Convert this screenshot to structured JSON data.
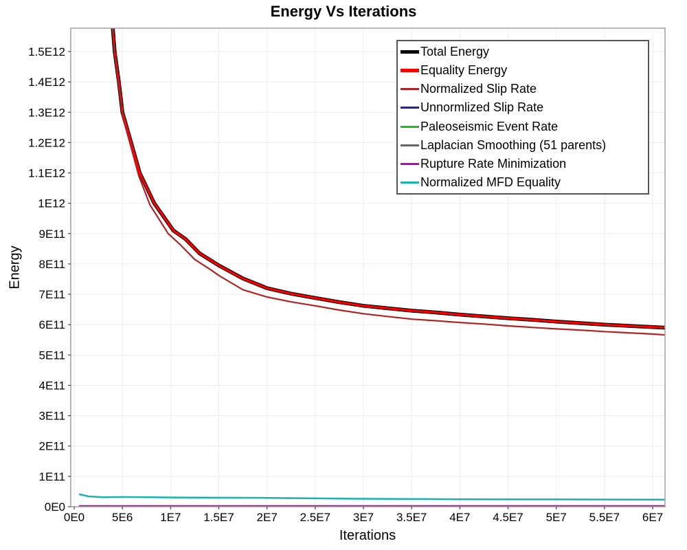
{
  "chart_data": {
    "type": "line",
    "title": "Energy Vs Iterations",
    "xlabel": "Iterations",
    "ylabel": "Energy",
    "grid": true,
    "legend_position": "top-right",
    "xlim": [
      -356000,
      61280000
    ],
    "ylim": [
      0,
      1577000000000.0
    ],
    "x_ticks": {
      "values": [
        0,
        5000000.0,
        10000000.0,
        15000000.0,
        20000000.0,
        25000000.0,
        30000000.0,
        35000000.0,
        40000000.0,
        45000000.0,
        50000000.0,
        55000000.0,
        60000000.0
      ],
      "labels": [
        "0E0",
        "5E6",
        "1E7",
        "1.5E7",
        "2E7",
        "2.5E7",
        "3E7",
        "3.5E7",
        "4E7",
        "4.5E7",
        "5E7",
        "5.5E7",
        "6E7"
      ]
    },
    "y_ticks": {
      "values": [
        0,
        100000000000.0,
        200000000000.0,
        300000000000.0,
        400000000000.0,
        500000000000.0,
        600000000000.0,
        700000000000.0,
        800000000000.0,
        900000000000.0,
        1000000000000.0,
        1100000000000.0,
        1200000000000.0,
        1300000000000.0,
        1400000000000.0,
        1500000000000.0
      ],
      "labels": [
        "0E0",
        "1E11",
        "2E11",
        "3E11",
        "4E11",
        "5E11",
        "6E11",
        "7E11",
        "8E11",
        "9E11",
        "1E12",
        "1.1E12",
        "1.2E12",
        "1.3E12",
        "1.4E12",
        "1.5E12"
      ]
    },
    "colors": {
      "grid": "#ececec",
      "plot_border": "#9e9e9e",
      "tick": "#444444",
      "text": "#000000"
    },
    "series": [
      {
        "name": "Total Energy",
        "color": "#000000",
        "width": 5.5,
        "points": [
          [
            3900000,
            1620000000000.0
          ],
          [
            4200000,
            1500000000000.0
          ],
          [
            4630000,
            1400000000000.0
          ],
          [
            5000000,
            1300000000000.0
          ],
          [
            5900000,
            1200000000000.0
          ],
          [
            6800000,
            1100000000000.0
          ],
          [
            8300000,
            1000000000000.0
          ],
          [
            10300000,
            910000000000.0
          ],
          [
            11550000,
            882000000000.0
          ],
          [
            13000000,
            835000000000.0
          ],
          [
            15000000,
            795000000000.0
          ],
          [
            17500000,
            752000000000.0
          ],
          [
            20000000,
            720000000000.0
          ],
          [
            22500000,
            702000000000.0
          ],
          [
            25000000,
            688000000000.0
          ],
          [
            27500000,
            674000000000.0
          ],
          [
            30000000,
            662000000000.0
          ],
          [
            32500000,
            654000000000.0
          ],
          [
            35000000,
            646000000000.0
          ],
          [
            37500000,
            640000000000.0
          ],
          [
            40000000,
            633000000000.0
          ],
          [
            42500000,
            627000000000.0
          ],
          [
            45000000,
            621000000000.0
          ],
          [
            47500000,
            616000000000.0
          ],
          [
            50000000,
            610000000000.0
          ],
          [
            52500000,
            605000000000.0
          ],
          [
            55000000,
            600000000000.0
          ],
          [
            57500000,
            596000000000.0
          ],
          [
            60000000,
            592000000000.0
          ],
          [
            61280000,
            590000000000.0
          ]
        ]
      },
      {
        "name": "Equality Energy",
        "color": "#ff0000",
        "width": 3.2,
        "points": [
          [
            3900000,
            1620000000000.0
          ],
          [
            4200000,
            1500000000000.0
          ],
          [
            4630000,
            1400000000000.0
          ],
          [
            5000000,
            1300000000000.0
          ],
          [
            5900000,
            1200000000000.0
          ],
          [
            6800000,
            1100000000000.0
          ],
          [
            8300000,
            1000000000000.0
          ],
          [
            10300000,
            910000000000.0
          ],
          [
            11550000,
            882000000000.0
          ],
          [
            13000000,
            835000000000.0
          ],
          [
            15000000,
            795000000000.0
          ],
          [
            17500000,
            752000000000.0
          ],
          [
            20000000,
            720000000000.0
          ],
          [
            22500000,
            702000000000.0
          ],
          [
            25000000,
            688000000000.0
          ],
          [
            27500000,
            674000000000.0
          ],
          [
            30000000,
            662000000000.0
          ],
          [
            32500000,
            654000000000.0
          ],
          [
            35000000,
            646000000000.0
          ],
          [
            37500000,
            640000000000.0
          ],
          [
            40000000,
            633000000000.0
          ],
          [
            42500000,
            627000000000.0
          ],
          [
            45000000,
            621000000000.0
          ],
          [
            47500000,
            616000000000.0
          ],
          [
            50000000,
            610000000000.0
          ],
          [
            52500000,
            605000000000.0
          ],
          [
            55000000,
            600000000000.0
          ],
          [
            57500000,
            596000000000.0
          ],
          [
            60000000,
            592000000000.0
          ],
          [
            61280000,
            590000000000.0
          ]
        ]
      },
      {
        "name": "Normalized Slip Rate",
        "color": "#b22222",
        "width": 2.2,
        "points": [
          [
            3900000,
            1610000000000.0
          ],
          [
            4200000,
            1490000000000.0
          ],
          [
            4600000,
            1390000000000.0
          ],
          [
            5000000,
            1290000000000.0
          ],
          [
            5850000,
            1190000000000.0
          ],
          [
            6700000,
            1090000000000.0
          ],
          [
            7850000,
            995000000000.0
          ],
          [
            9750000,
            900000000000.0
          ],
          [
            11050000,
            862000000000.0
          ],
          [
            12500000,
            815000000000.0
          ],
          [
            14200000,
            780000000000.0
          ],
          [
            15000000,
            762000000000.0
          ],
          [
            17500000,
            715000000000.0
          ],
          [
            20000000,
            691000000000.0
          ],
          [
            22500000,
            675000000000.0
          ],
          [
            25000000,
            662000000000.0
          ],
          [
            27500000,
            648000000000.0
          ],
          [
            30000000,
            636000000000.0
          ],
          [
            32500000,
            627000000000.0
          ],
          [
            35000000,
            618000000000.0
          ],
          [
            37500000,
            613000000000.0
          ],
          [
            40000000,
            607000000000.0
          ],
          [
            42500000,
            602000000000.0
          ],
          [
            45000000,
            596000000000.0
          ],
          [
            47500000,
            591000000000.0
          ],
          [
            50000000,
            586000000000.0
          ],
          [
            52500000,
            582000000000.0
          ],
          [
            55000000,
            577000000000.0
          ],
          [
            57500000,
            573000000000.0
          ],
          [
            60000000,
            569000000000.0
          ],
          [
            61280000,
            566000000000.0
          ]
        ]
      },
      {
        "name": "Unnormlized Slip Rate",
        "color": "#2222b2",
        "width": 2.2,
        "points": [
          [
            500000,
            2000000000.0
          ],
          [
            61280000,
            2000000000.0
          ]
        ]
      },
      {
        "name": "Paleoseismic Event Rate",
        "color": "#15c215",
        "width": 2.2,
        "points": [
          [
            500000,
            1600000000.0
          ],
          [
            61280000,
            1600000000.0
          ]
        ]
      },
      {
        "name": "Laplacian Smoothing (51 parents)",
        "color": "#666666",
        "width": 2.2,
        "points": [
          [
            500000,
            1200000000.0
          ],
          [
            61280000,
            1200000000.0
          ]
        ]
      },
      {
        "name": "Rupture Rate Minimization",
        "color": "#bf00bf",
        "width": 2.2,
        "points": [
          [
            500000,
            2800000000.0
          ],
          [
            61280000,
            2800000000.0
          ]
        ]
      },
      {
        "name": "Normalized MFD Equality",
        "color": "#17b3b3",
        "width": 2.5,
        "points": [
          [
            500000,
            41000000000.0
          ],
          [
            1500000,
            34000000000.0
          ],
          [
            3000000,
            31000000000.0
          ],
          [
            5000000,
            32000000000.0
          ],
          [
            8000000,
            31000000000.0
          ],
          [
            12000000,
            30000000000.0
          ],
          [
            20000000,
            29000000000.0
          ],
          [
            25000000,
            27500000000.0
          ],
          [
            30000000,
            26000000000.0
          ],
          [
            40000000,
            24500000000.0
          ],
          [
            50000000,
            24000000000.0
          ],
          [
            61280000,
            23000000000.0
          ]
        ]
      }
    ]
  }
}
